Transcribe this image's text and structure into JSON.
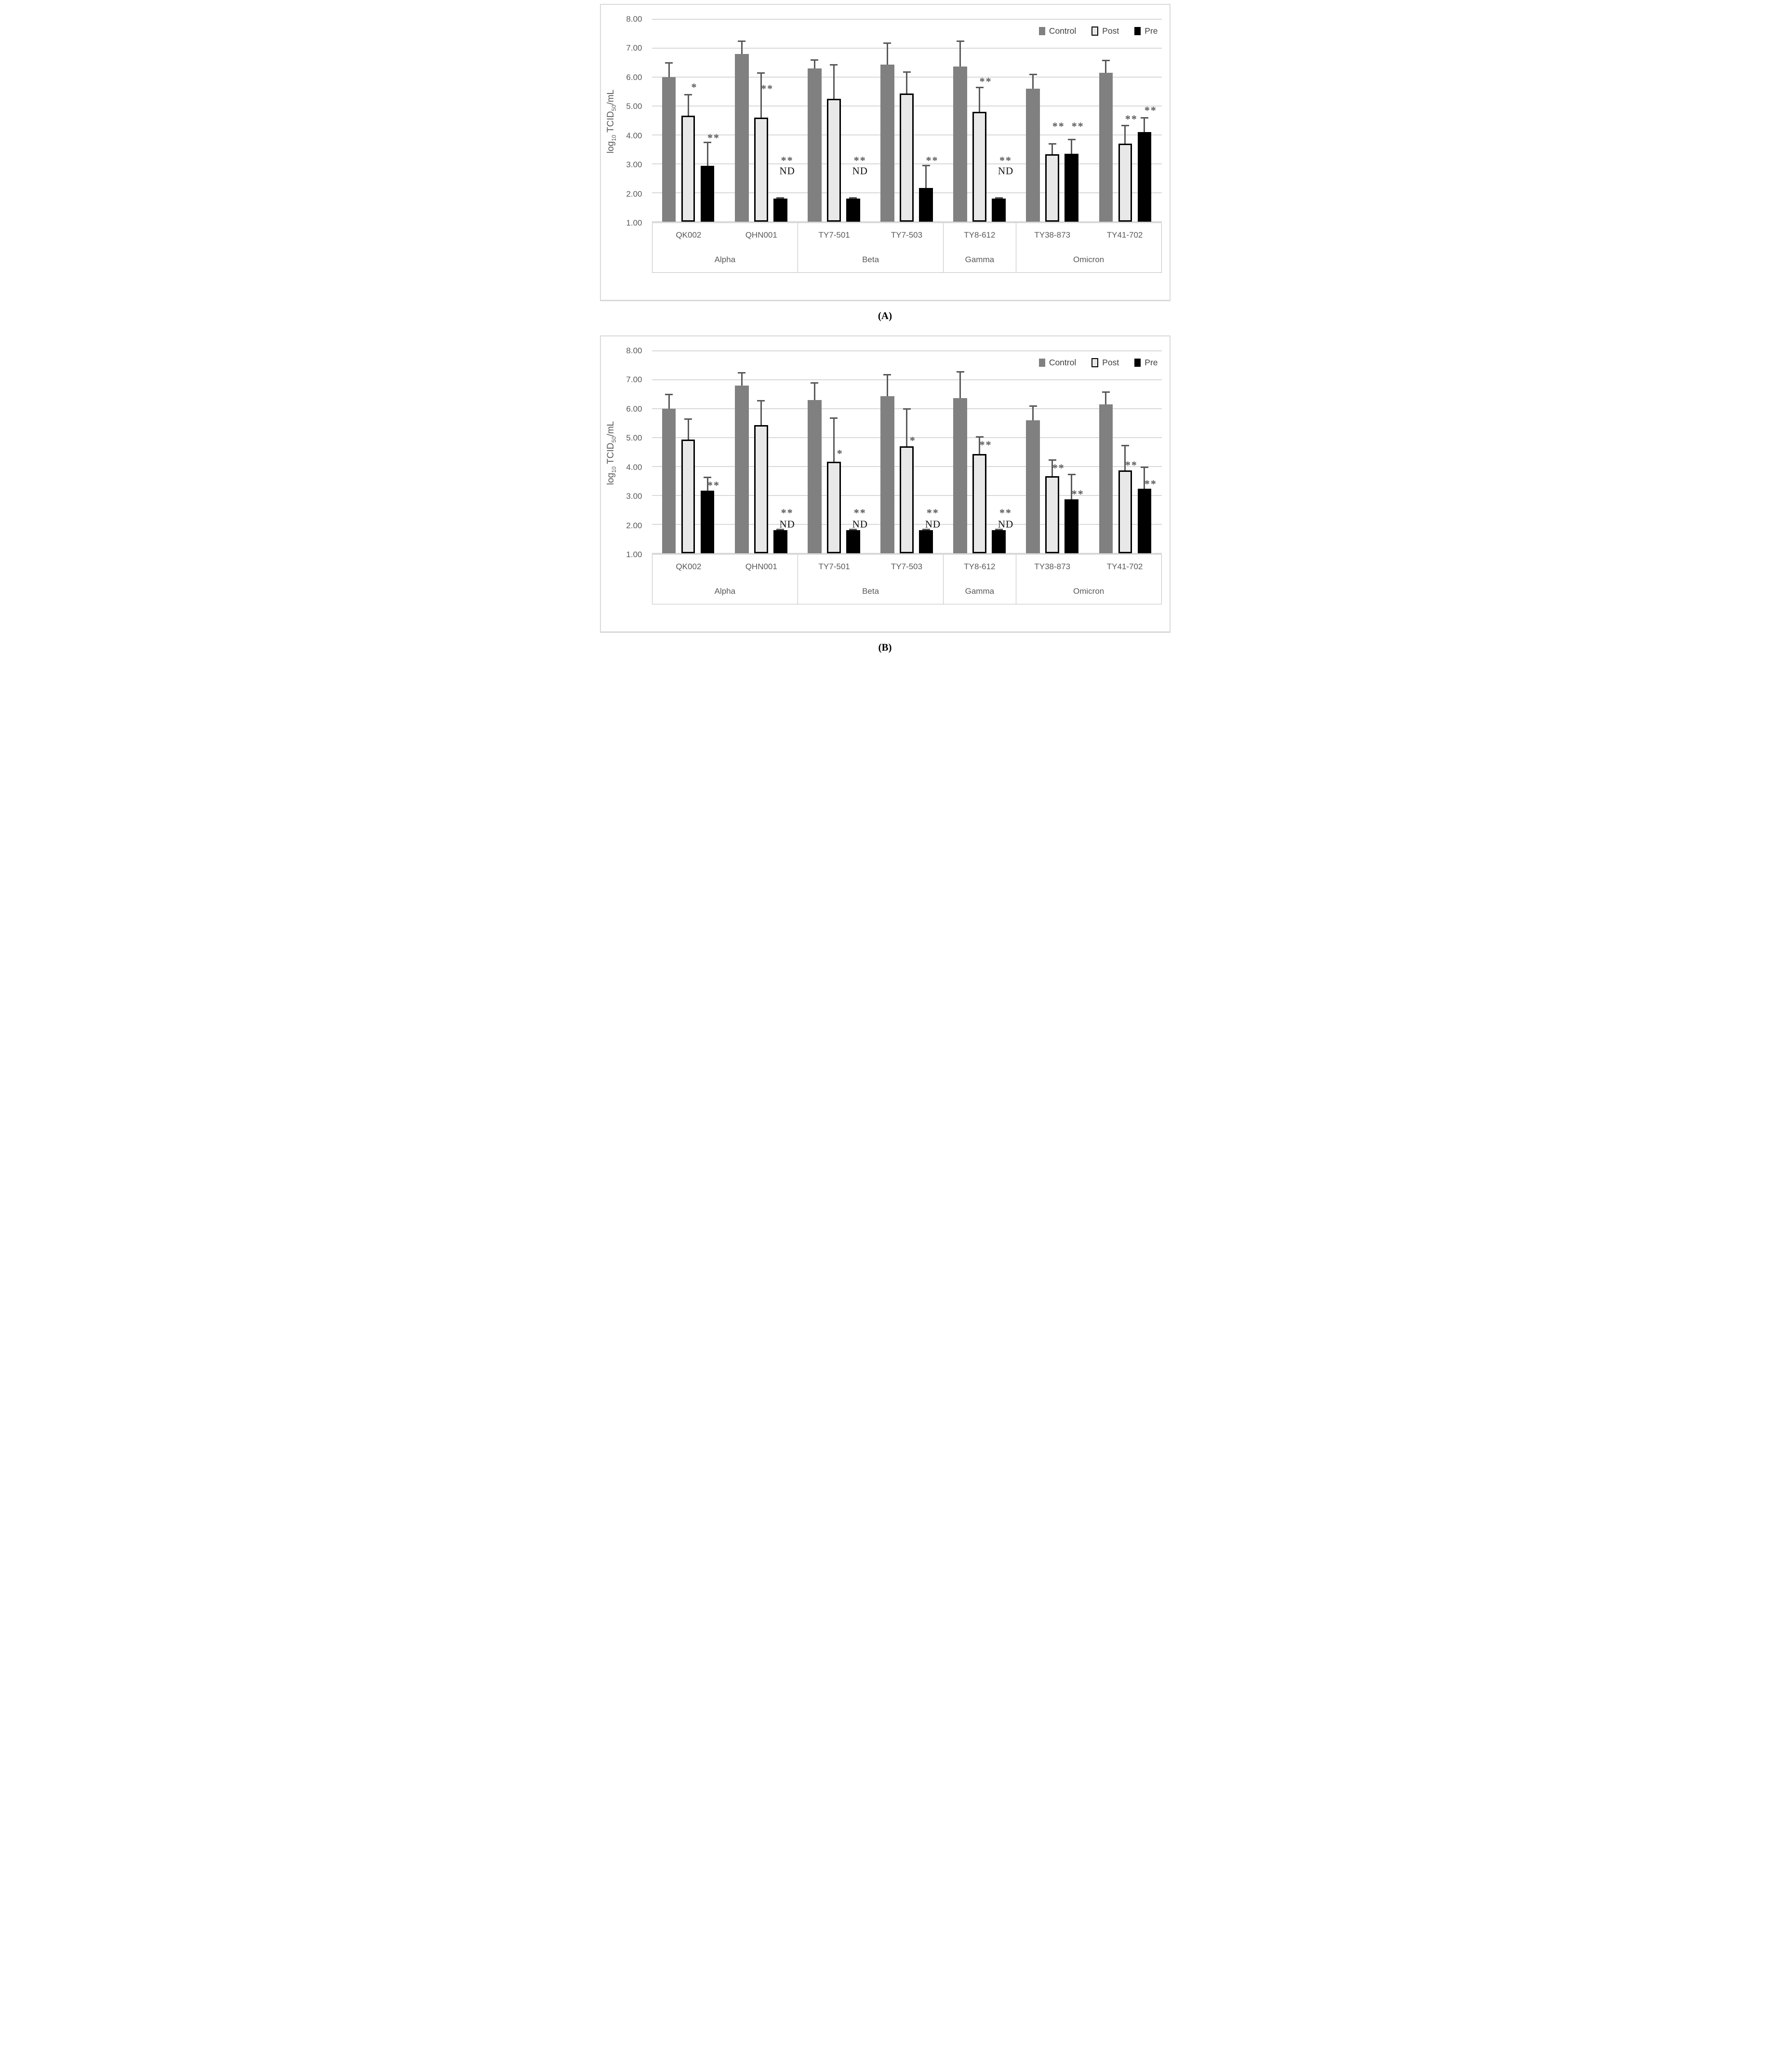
{
  "figure": {
    "caption_a": "(A)",
    "caption_b": "(B)"
  },
  "axis": {
    "y_label_pre": "log",
    "y_label_sub1": "10",
    "y_label_mid": " TCID",
    "y_label_sub2": "50",
    "y_label_post": "/mL",
    "y_ticks": [
      "8.00",
      "7.00",
      "6.00",
      "5.00",
      "4.00",
      "3.00",
      "2.00",
      "1.00"
    ]
  },
  "legend": {
    "items": [
      {
        "label": "Control",
        "color": "#808080"
      },
      {
        "label": "Post",
        "color": "#e8e8e8",
        "border": "#000000"
      },
      {
        "label": "Pre",
        "color": "#000000"
      }
    ]
  },
  "colors": {
    "control": "#808080",
    "post_fill": "#e8e8e8",
    "post_border": "#000000",
    "pre": "#000000",
    "gridline": "#d9d9d9",
    "error_bar": "#595959",
    "axis_text": "#595959",
    "sig_marker": "#595959",
    "panel_border": "#d9d9d9"
  },
  "chart_data": [
    {
      "panel": "A",
      "type": "bar",
      "title": "(A)",
      "ylabel": "log10 TCID50/mL",
      "xlabel": "",
      "ylim": [
        1.0,
        8.0
      ],
      "grid": true,
      "legend_position": "top-right",
      "categories": [
        "QK002",
        "QHN001",
        "TY7-501",
        "TY7-503",
        "TY8-612",
        "TY38-873",
        "TY41-702"
      ],
      "group_row": [
        {
          "label": "Alpha",
          "span": 2
        },
        {
          "label": "Beta",
          "span": 2
        },
        {
          "label": "Gamma",
          "span": 1
        },
        {
          "label": "Omicron",
          "span": 2
        }
      ],
      "series": [
        {
          "name": "Control",
          "values": [
            6.0,
            6.8,
            6.3,
            6.43,
            6.37,
            5.6,
            6.15
          ],
          "err_top": [
            6.5,
            7.25,
            6.6,
            7.18,
            7.25,
            6.1,
            6.57
          ],
          "sig": [
            null,
            null,
            null,
            null,
            null,
            null,
            null
          ]
        },
        {
          "name": "Post",
          "values": [
            4.67,
            4.6,
            5.25,
            5.43,
            4.8,
            3.33,
            3.7
          ],
          "err_top": [
            5.4,
            6.15,
            6.43,
            6.18,
            5.65,
            3.7,
            4.33
          ],
          "sig": [
            "*",
            "**",
            null,
            null,
            "**",
            "**",
            "**"
          ],
          "sig_y": [
            5.65,
            5.6,
            null,
            null,
            5.85,
            4.3,
            4.55
          ]
        },
        {
          "name": "Pre",
          "values": [
            2.93,
            1.8,
            1.8,
            2.17,
            1.8,
            3.35,
            4.1
          ],
          "err_top": [
            3.75,
            1.82,
            1.82,
            2.95,
            1.82,
            3.85,
            4.6
          ],
          "sig": [
            "**",
            "**",
            "**",
            "**",
            "**",
            "**",
            "**"
          ],
          "sig_y": [
            3.9,
            3.12,
            3.12,
            3.12,
            3.12,
            4.3,
            4.85
          ],
          "nd": [
            false,
            true,
            true,
            false,
            true,
            false,
            false
          ]
        }
      ],
      "nd_label": "ND",
      "nd_text_y": 2.75
    },
    {
      "panel": "B",
      "type": "bar",
      "title": "(B)",
      "ylabel": "log10 TCID50/mL",
      "xlabel": "",
      "ylim": [
        1.0,
        8.0
      ],
      "grid": true,
      "legend_position": "top-right",
      "categories": [
        "QK002",
        "QHN001",
        "TY7-501",
        "TY7-503",
        "TY8-612",
        "TY38-873",
        "TY41-702"
      ],
      "group_row": [
        {
          "label": "Alpha",
          "span": 2
        },
        {
          "label": "Beta",
          "span": 2
        },
        {
          "label": "Gamma",
          "span": 1
        },
        {
          "label": "Omicron",
          "span": 2
        }
      ],
      "series": [
        {
          "name": "Control",
          "values": [
            6.0,
            6.8,
            6.3,
            6.43,
            6.37,
            5.6,
            6.15
          ],
          "err_top": [
            6.5,
            7.25,
            6.9,
            7.18,
            7.27,
            6.1,
            6.57
          ],
          "sig": [
            null,
            null,
            null,
            null,
            null,
            null,
            null
          ]
        },
        {
          "name": "Post",
          "values": [
            4.93,
            5.43,
            4.17,
            4.7,
            4.43,
            3.67,
            3.87
          ],
          "err_top": [
            5.65,
            6.27,
            5.67,
            6.0,
            5.03,
            4.22,
            4.73
          ],
          "sig": [
            null,
            null,
            "*",
            "*",
            "**",
            "**",
            "**"
          ],
          "sig_y": [
            null,
            null,
            4.45,
            4.9,
            4.75,
            3.95,
            4.05
          ]
        },
        {
          "name": "Pre",
          "values": [
            3.17,
            1.8,
            1.8,
            1.8,
            1.8,
            2.87,
            3.23
          ],
          "err_top": [
            3.62,
            1.82,
            1.82,
            1.82,
            1.82,
            3.72,
            3.97
          ],
          "sig": [
            "**",
            "**",
            "**",
            "**",
            "**",
            "**",
            "**"
          ],
          "sig_y": [
            3.35,
            2.4,
            2.4,
            2.4,
            2.4,
            3.05,
            3.4
          ],
          "nd": [
            false,
            true,
            true,
            true,
            true,
            false,
            false
          ]
        }
      ],
      "nd_label": "ND",
      "nd_text_y": 2.0
    }
  ]
}
